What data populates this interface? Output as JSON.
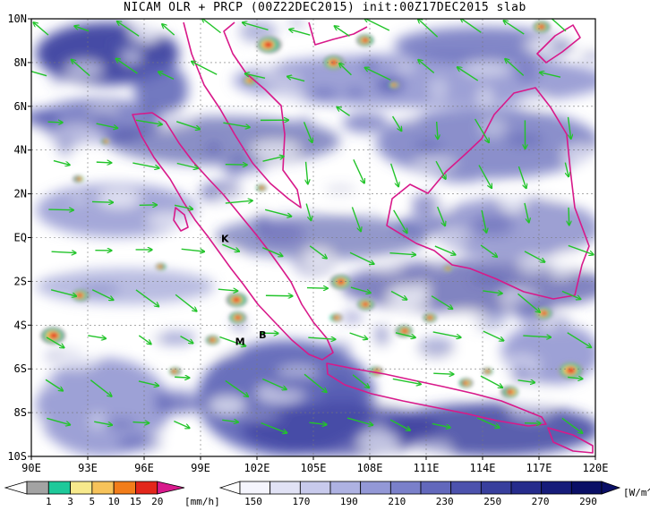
{
  "title": "NICAM OLR + PRCP (00Z22DEC2015) init:00Z17DEC2015 slab",
  "map": {
    "lon_range": [
      90,
      120
    ],
    "lat_range": [
      -10,
      10
    ],
    "lon_ticks": [
      "90E",
      "93E",
      "96E",
      "99E",
      "102E",
      "105E",
      "108E",
      "111E",
      "114E",
      "117E",
      "120E"
    ],
    "lat_ticks": [
      "10N",
      "8N",
      "6N",
      "4N",
      "2N",
      "EQ",
      "2S",
      "4S",
      "6S",
      "8S",
      "10S"
    ],
    "colors": {
      "ocean_white": "#ffffff",
      "cloud": "#4a4fa8",
      "coast": "#d8198a",
      "wind": "#22c42a"
    },
    "site_labels": [
      {
        "text": "K",
        "lon": 100.3,
        "lat": -0.2
      },
      {
        "text": "M",
        "lon": 101.1,
        "lat": -4.9
      },
      {
        "text": "B",
        "lon": 102.3,
        "lat": -4.6
      }
    ]
  },
  "precip_colorbar": {
    "values": [
      "1",
      "3",
      "5",
      "10",
      "15",
      "20"
    ],
    "unit": "[mm/h]",
    "colors": [
      "#a3a3a3",
      "#1ec99a",
      "#f7e98c",
      "#f7c35a",
      "#f27d1a",
      "#e3271b",
      "#d81a8c"
    ]
  },
  "olr_colorbar": {
    "values": [
      "150",
      "170",
      "190",
      "210",
      "230",
      "250",
      "270",
      "290"
    ],
    "unit": "[W/m^2]",
    "colors": [
      "#f5f5fd",
      "#e1e2f5",
      "#c8caec",
      "#aeb2e2",
      "#9398d6",
      "#7a80ca",
      "#6268bc",
      "#4c52ad",
      "#383f9d",
      "#262c8c",
      "#161c7a",
      "#0a0f66"
    ]
  }
}
